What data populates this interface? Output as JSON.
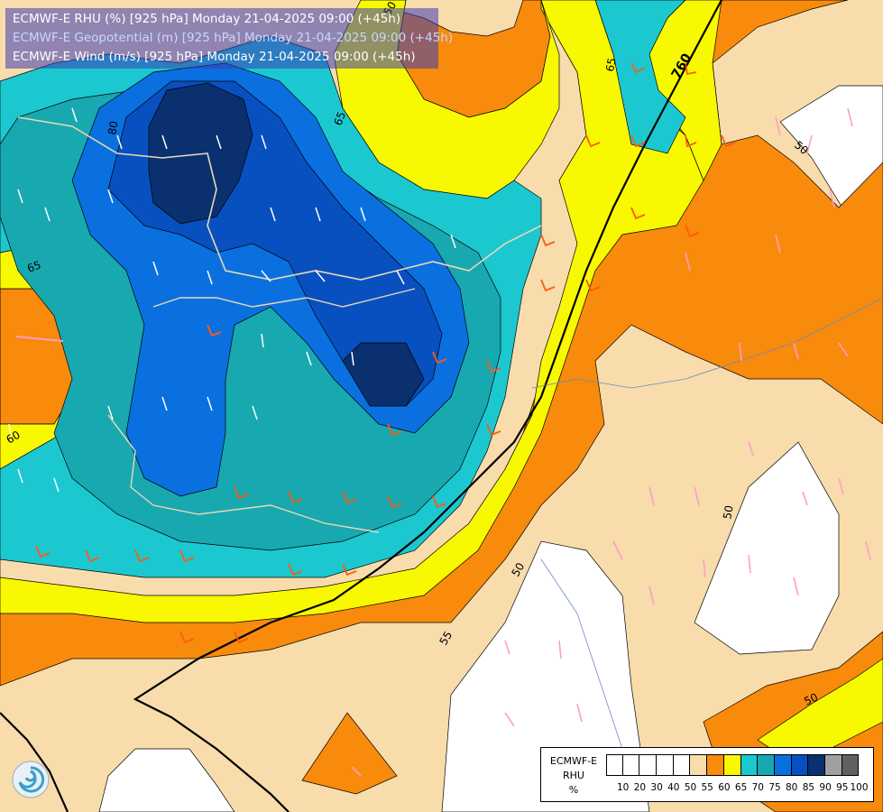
{
  "titles": {
    "line1": "ECMWF-E RHU (%) [925 hPa] Monday 21-04-2025 09:00 (+45h)",
    "line2": "ECMWF-E Geopotential (m) [925 hPa] Monday 21-04-2025 09:00 (+45h)",
    "line3": "ECMWF-E Wind (m/s) [925 hPa] Monday 21-04-2025 09:00 (+45h)"
  },
  "colors": {
    "title_line1": "#ffffff",
    "title_line2": "#c8d8ff",
    "title_line3": "#ffffff",
    "rh_50_55": "#f8dcac",
    "rh_55_60": "#f88a0c",
    "rh_60_65": "#f8f800",
    "rh_65_70": "#1cc8d0",
    "rh_70_75": "#18a8b0",
    "rh_75_80": "#0a70e0",
    "rh_80_85": "#0850c0",
    "rh_85_90": "#0a3070",
    "rh_low": "#ffffff",
    "geopotential_line": "#000000",
    "wind_barb_light": "#ff9ec8",
    "wind_barb_strong": "#ff5a10"
  },
  "legend": {
    "label_line1": "ECMWF-E",
    "label_line2": "RHU",
    "label_line3": "%",
    "swatch_colors": [
      "#ffffff",
      "#ffffff",
      "#ffffff",
      "#ffffff",
      "#ffffff",
      "#f8dcac",
      "#f88a0c",
      "#f8f800",
      "#1cc8d0",
      "#18a8b0",
      "#0a70e0",
      "#0850c0",
      "#0a3070",
      "#a0a0a0",
      "#606060"
    ],
    "ticks": [
      "10",
      "20",
      "30",
      "40",
      "50",
      "55",
      "60",
      "65",
      "70",
      "75",
      "80",
      "85",
      "90",
      "95",
      "100"
    ]
  },
  "contour_labels": {
    "rhu": [
      "80",
      "65",
      "65",
      "65",
      "60",
      "50",
      "50",
      "50",
      "55",
      "50",
      "50"
    ],
    "geopotential": "760"
  },
  "logo_icon": "ecmwf-swirl-icon"
}
